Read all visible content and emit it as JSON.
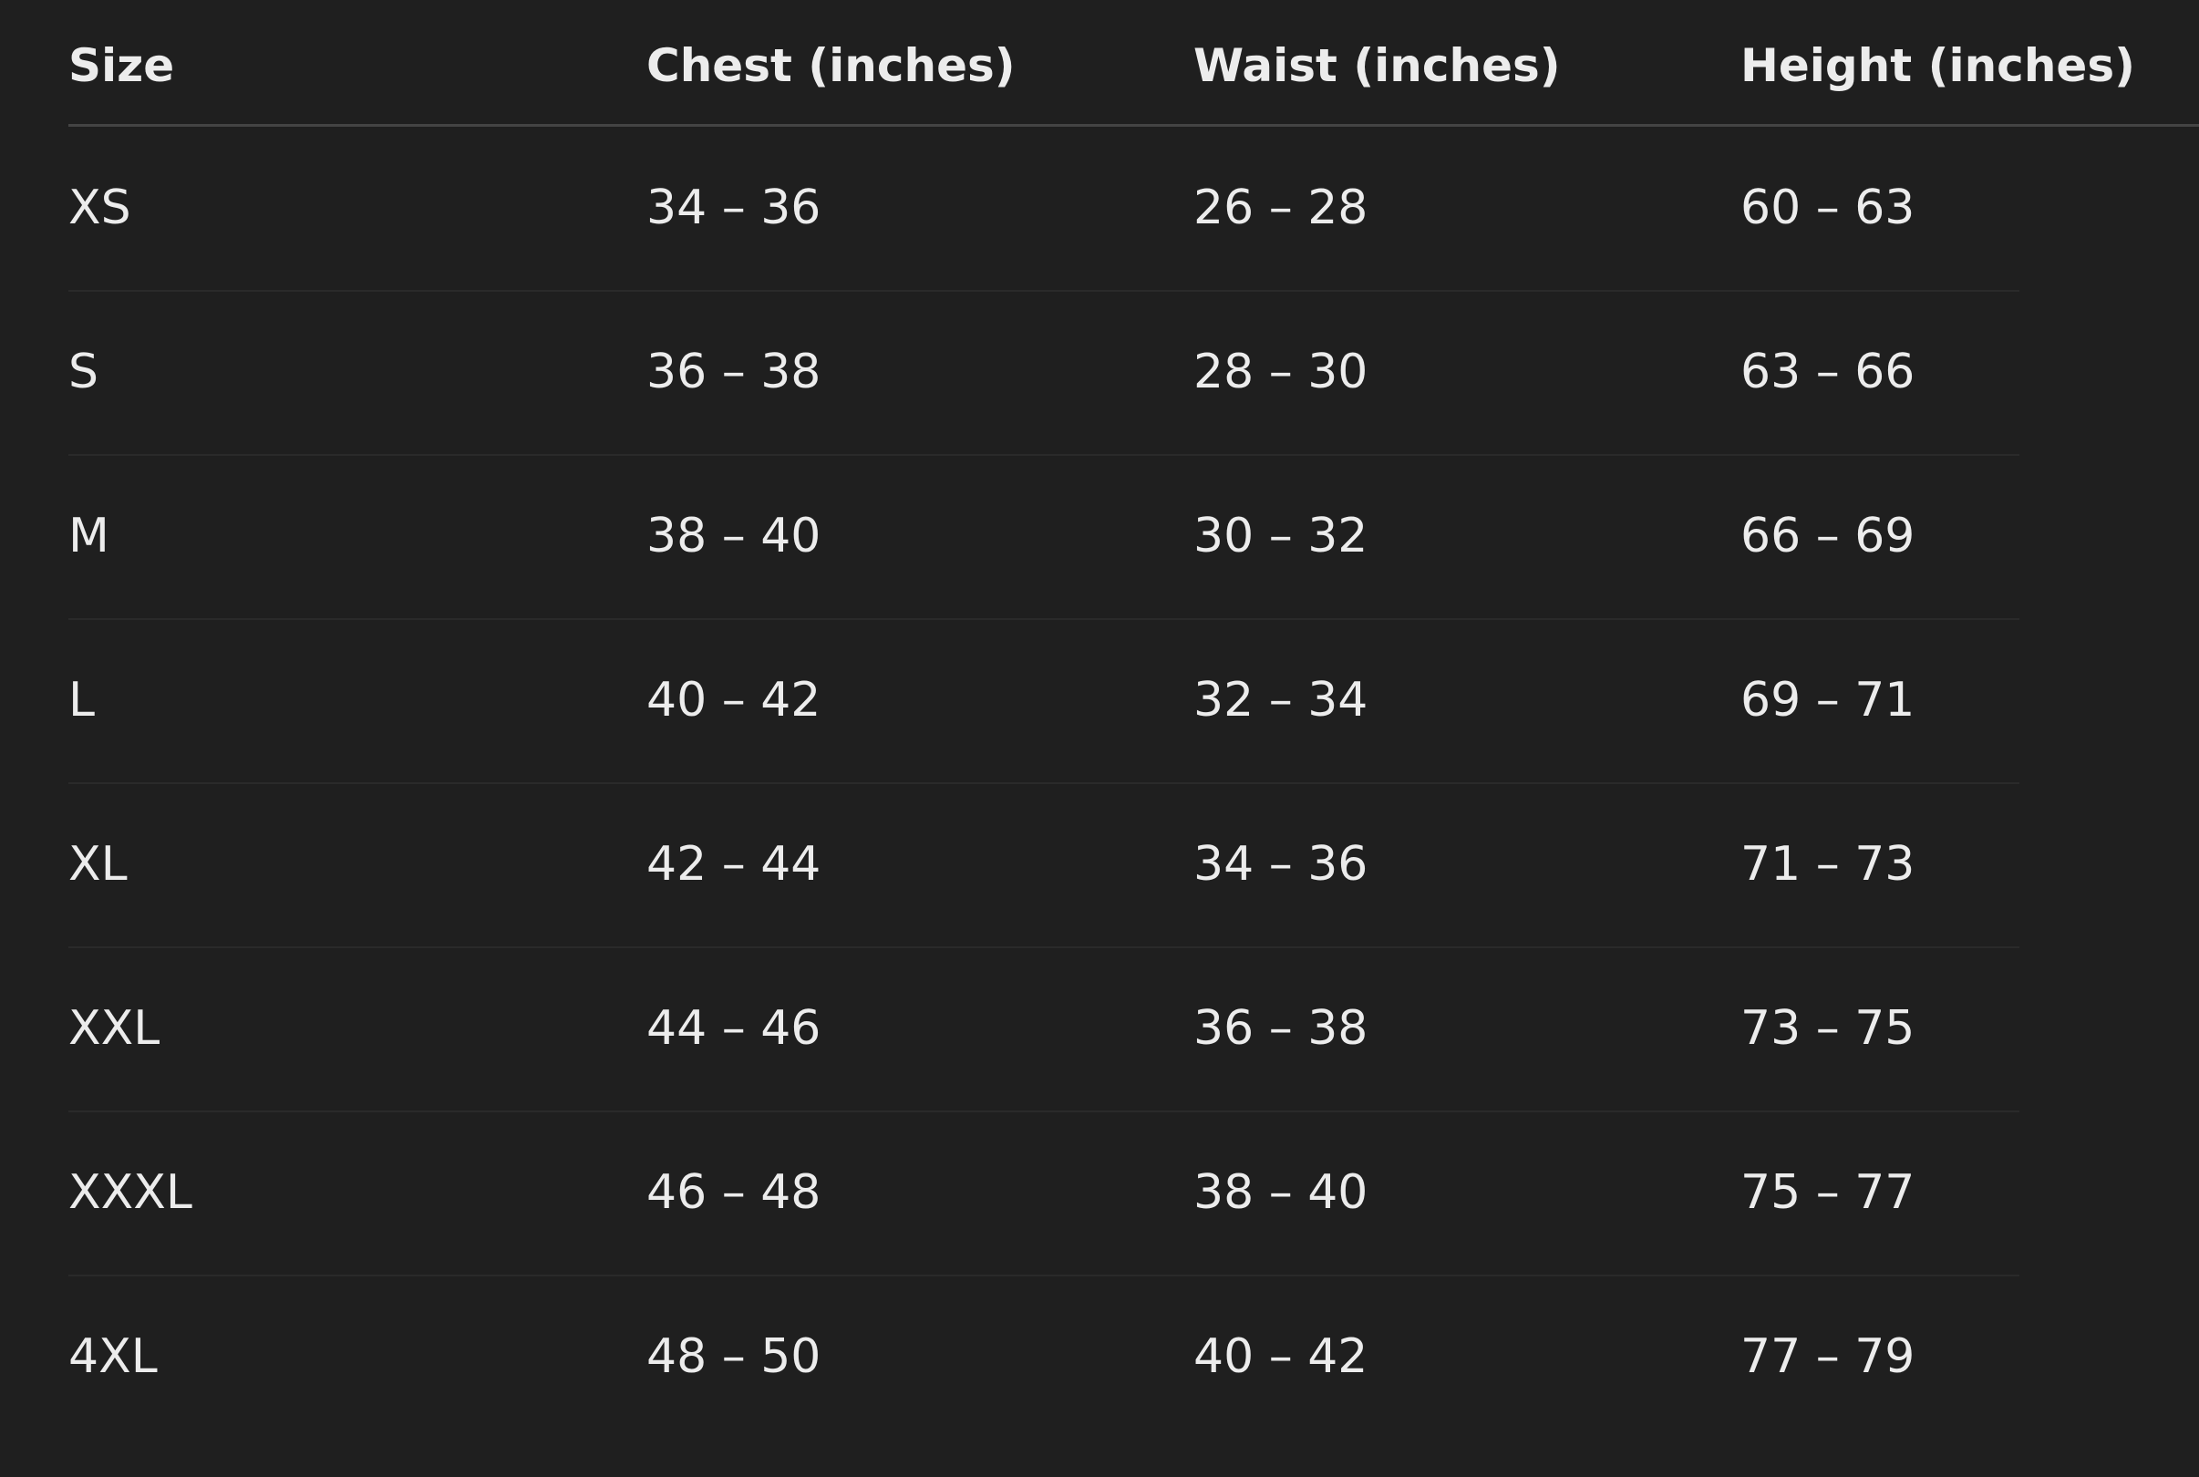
{
  "table": {
    "columns": [
      "Size",
      "Chest (inches)",
      "Waist (inches)",
      "Height (inches)"
    ],
    "rows": [
      [
        "XS",
        "34 – 36",
        "26 – 28",
        "60 – 63"
      ],
      [
        "S",
        "36 – 38",
        "28 – 30",
        "63 – 66"
      ],
      [
        "M",
        "38 – 40",
        "30 – 32",
        "66 – 69"
      ],
      [
        "L",
        "40 – 42",
        "32 – 34",
        "69 – 71"
      ],
      [
        "XL",
        "42 – 44",
        "34 – 36",
        "71 – 73"
      ],
      [
        "XXL",
        "44 – 46",
        "36 – 38",
        "73 – 75"
      ],
      [
        "XXXL",
        "46 – 48",
        "38 – 40",
        "75 – 77"
      ],
      [
        "4XL",
        "48 – 50",
        "40 – 42",
        "77 – 79"
      ]
    ]
  }
}
